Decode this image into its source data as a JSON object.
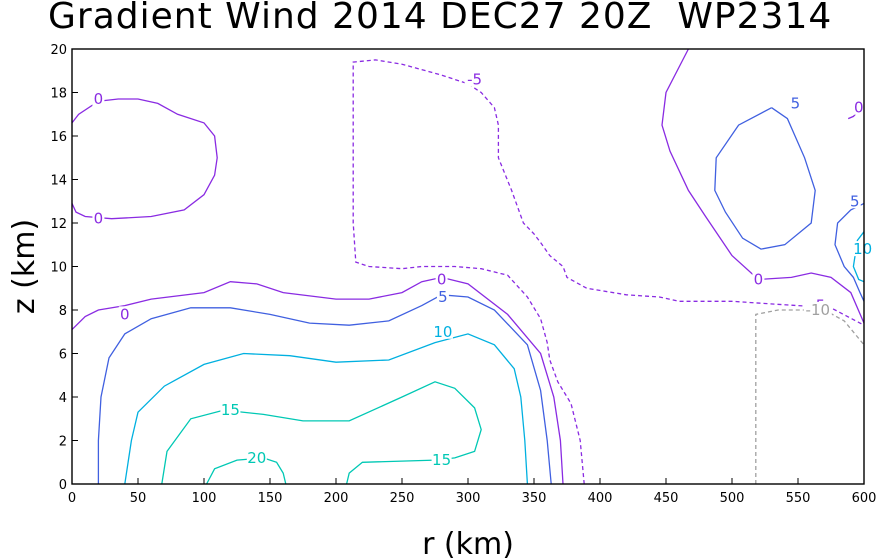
{
  "chart_data": {
    "type": "contour",
    "title": "Gradient Wind 2014 DEC27 20Z  WP2314",
    "xlabel": "r (km)",
    "ylabel": "z (km)",
    "xlim": [
      0,
      600
    ],
    "ylim": [
      0,
      20
    ],
    "x_ticks": [
      0,
      50,
      100,
      150,
      200,
      250,
      300,
      350,
      400,
      450,
      500,
      550,
      600
    ],
    "y_ticks": [
      0,
      2,
      4,
      6,
      8,
      10,
      12,
      14,
      16,
      18,
      20
    ],
    "grid": false,
    "contours": [
      {
        "level": 0,
        "label": "0",
        "color": "#8a2be2",
        "dash": false,
        "lines": [
          [
            [
              0,
              12.9
            ],
            [
              3,
              12.5
            ],
            [
              10,
              12.3
            ],
            [
              30,
              12.2
            ],
            [
              60,
              12.3
            ],
            [
              85,
              12.6
            ],
            [
              100,
              13.3
            ],
            [
              108,
              14.2
            ],
            [
              110,
              15
            ],
            [
              108,
              16
            ],
            [
              100,
              16.6
            ],
            [
              80,
              17
            ],
            [
              65,
              17.5
            ],
            [
              50,
              17.7
            ],
            [
              35,
              17.7
            ],
            [
              20,
              17.6
            ],
            [
              5,
              17.0
            ],
            [
              0,
              16.6
            ]
          ],
          [
            [
              0,
              7.1
            ],
            [
              10,
              7.7
            ],
            [
              20,
              8.0
            ],
            [
              40,
              8.2
            ],
            [
              60,
              8.5
            ],
            [
              100,
              8.8
            ],
            [
              120,
              9.3
            ],
            [
              140,
              9.2
            ],
            [
              160,
              8.8
            ],
            [
              200,
              8.5
            ],
            [
              225,
              8.5
            ],
            [
              250,
              8.8
            ],
            [
              265,
              9.3
            ],
            [
              280,
              9.5
            ],
            [
              300,
              9.2
            ],
            [
              330,
              7.8
            ],
            [
              355,
              6.0
            ],
            [
              365,
              4.0
            ],
            [
              370,
              2.0
            ],
            [
              372,
              0.0
            ]
          ],
          [
            [
              467,
              20
            ],
            [
              450,
              18
            ],
            [
              447,
              16.5
            ],
            [
              453,
              15.3
            ],
            [
              467,
              13.5
            ],
            [
              480,
              12.3
            ],
            [
              500,
              10.5
            ],
            [
              520,
              9.4
            ],
            [
              545,
              9.5
            ],
            [
              560,
              9.7
            ],
            [
              575,
              9.5
            ],
            [
              590,
              8.8
            ],
            [
              600,
              7.4
            ]
          ],
          [
            [
              588,
              16.8
            ],
            [
              592,
              16.9
            ],
            [
              598,
              17.3
            ],
            [
              600,
              17.5
            ]
          ]
        ],
        "labels": [
          [
            20,
            17.7
          ],
          [
            20,
            12.2
          ],
          [
            40,
            7.8
          ],
          [
            280,
            9.4
          ],
          [
            520,
            9.4
          ],
          [
            596,
            17.3
          ]
        ]
      },
      {
        "level": -5,
        "label": "-5",
        "color": "#8a2be2",
        "dash": true,
        "lines": [
          [
            [
              388,
              0
            ],
            [
              385,
              2
            ],
            [
              378,
              3.7
            ],
            [
              368,
              4.7
            ],
            [
              362,
              5.7
            ],
            [
              360,
              6.5
            ],
            [
              355,
              7.6
            ],
            [
              345,
              8.6
            ],
            [
              330,
              9.6
            ],
            [
              310,
              9.9
            ],
            [
              290,
              10
            ],
            [
              265,
              10
            ],
            [
              250,
              9.9
            ],
            [
              225,
              10.0
            ],
            [
              215,
              10.2
            ],
            [
              213,
              12
            ],
            [
              213,
              19.4
            ],
            [
              230,
              19.5
            ],
            [
              250,
              19.3
            ],
            [
              280,
              18.8
            ],
            [
              300,
              18.4
            ],
            [
              310,
              18
            ],
            [
              320,
              17.3
            ],
            [
              323,
              16.5
            ],
            [
              323,
              15
            ],
            [
              333,
              13.5
            ],
            [
              342,
              12.0
            ],
            [
              350,
              11.5
            ],
            [
              355,
              11.1
            ],
            [
              362,
              10.5
            ],
            [
              372,
              10.0
            ],
            [
              375,
              9.5
            ],
            [
              390,
              9.0
            ],
            [
              420,
              8.7
            ],
            [
              445,
              8.6
            ],
            [
              460,
              8.4
            ],
            [
              500,
              8.4
            ],
            [
              525,
              8.3
            ],
            [
              550,
              8.2
            ],
            [
              575,
              8.1
            ],
            [
              600,
              7.3
            ]
          ]
        ],
        "labels": [
          [
            305,
            18.6
          ],
          [
            565,
            8.2
          ]
        ]
      },
      {
        "level": 5,
        "label": "5",
        "color": "#4060e0",
        "dash": false,
        "lines": [
          [
            [
              20,
              0
            ],
            [
              20,
              2
            ],
            [
              22,
              4
            ],
            [
              28,
              5.8
            ],
            [
              40,
              6.9
            ],
            [
              60,
              7.6
            ],
            [
              90,
              8.1
            ],
            [
              120,
              8.1
            ],
            [
              150,
              7.8
            ],
            [
              180,
              7.4
            ],
            [
              210,
              7.3
            ],
            [
              240,
              7.5
            ],
            [
              265,
              8.2
            ],
            [
              280,
              8.7
            ],
            [
              300,
              8.6
            ],
            [
              320,
              8.0
            ],
            [
              345,
              6.4
            ],
            [
              355,
              4.3
            ],
            [
              360,
              2.0
            ],
            [
              363,
              0.0
            ]
          ],
          [
            [
              530,
              17.3
            ],
            [
              505,
              16.5
            ],
            [
              488,
              15
            ],
            [
              487,
              13.5
            ],
            [
              495,
              12.5
            ],
            [
              508,
              11.3
            ],
            [
              522,
              10.8
            ],
            [
              540,
              11.0
            ],
            [
              560,
              12.0
            ],
            [
              563,
              13.5
            ],
            [
              555,
              15
            ],
            [
              542,
              16.8
            ],
            [
              530,
              17.3
            ]
          ],
          [
            [
              600,
              12.9
            ],
            [
              590,
              12.6
            ],
            [
              580,
              12.0
            ],
            [
              578,
              11.0
            ],
            [
              585,
              10.0
            ],
            [
              592,
              9.5
            ],
            [
              597,
              8.8
            ],
            [
              600,
              8.4
            ]
          ]
        ],
        "labels": [
          [
            281,
            8.6
          ],
          [
            548,
            17.5
          ],
          [
            593,
            13.0
          ]
        ]
      },
      {
        "level": 10,
        "label": "10",
        "color": "#00b0e0",
        "dash": false,
        "lines": [
          [
            [
              40,
              0
            ],
            [
              45,
              2
            ],
            [
              50,
              3.3
            ],
            [
              70,
              4.5
            ],
            [
              100,
              5.5
            ],
            [
              130,
              6.0
            ],
            [
              165,
              5.9
            ],
            [
              200,
              5.6
            ],
            [
              240,
              5.7
            ],
            [
              275,
              6.5
            ],
            [
              300,
              6.9
            ],
            [
              320,
              6.4
            ],
            [
              335,
              5.3
            ],
            [
              340,
              4
            ],
            [
              343,
              2
            ],
            [
              345,
              0
            ]
          ],
          [
            [
              600,
              11.6
            ],
            [
              595,
              11.2
            ],
            [
              592,
              10.0
            ],
            [
              596,
              9.4
            ],
            [
              600,
              9.3
            ]
          ]
        ],
        "labels": [
          [
            281,
            7.0
          ],
          [
            599,
            10.8
          ]
        ]
      },
      {
        "level": 15,
        "label": "15",
        "color": "#00c8b4",
        "dash": false,
        "lines": [
          [
            [
              68,
              0
            ],
            [
              72,
              1.5
            ],
            [
              90,
              3.0
            ],
            [
              115,
              3.4
            ],
            [
              145,
              3.2
            ],
            [
              175,
              2.9
            ],
            [
              210,
              2.9
            ],
            [
              250,
              4.0
            ],
            [
              275,
              4.7
            ],
            [
              290,
              4.4
            ],
            [
              305,
              3.5
            ],
            [
              310,
              2.5
            ],
            [
              305,
              1.5
            ],
            [
              290,
              1.2
            ],
            [
              275,
              1.1
            ],
            [
              220,
              1.0
            ],
            [
              210,
              0.5
            ],
            [
              208,
              0.0
            ]
          ]
        ],
        "labels": [
          [
            120,
            3.4
          ],
          [
            280,
            1.1
          ]
        ]
      },
      {
        "level": 20,
        "label": "20",
        "color": "#00c8b4",
        "dash": false,
        "lines": [
          [
            [
              102,
              0
            ],
            [
              108,
              0.7
            ],
            [
              125,
              1.1
            ],
            [
              145,
              1.2
            ],
            [
              155,
              1.0
            ],
            [
              160,
              0.5
            ],
            [
              162,
              0.0
            ]
          ]
        ],
        "labels": [
          [
            140,
            1.2
          ]
        ]
      },
      {
        "level": -10,
        "label": "-10",
        "color": "#a0a0a0",
        "dash": true,
        "lines": [
          [
            [
              518,
              0
            ],
            [
              518,
              4
            ],
            [
              518,
              7.8
            ],
            [
              535,
              8.0
            ],
            [
              555,
              8.0
            ],
            [
              570,
              8.0
            ],
            [
              585,
              7.5
            ],
            [
              600,
              6.4
            ]
          ]
        ],
        "labels": [
          [
            565,
            8.0
          ]
        ]
      }
    ]
  }
}
